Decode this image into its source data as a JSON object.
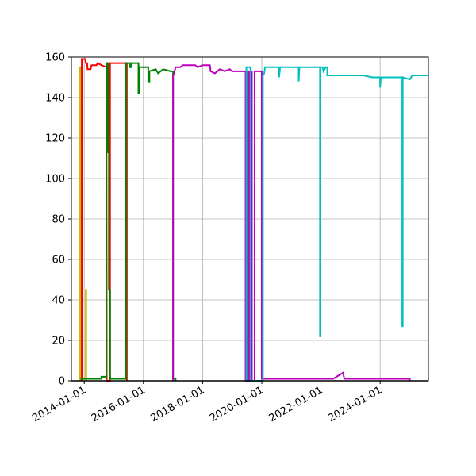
{
  "chart_data": {
    "type": "line",
    "title": "",
    "xlabel": "",
    "ylabel": "",
    "grid": true,
    "legend": "none",
    "xlim": [
      "2013-07-26",
      "2025-08-19"
    ],
    "ylim": [
      0,
      160
    ],
    "x_ticks": [
      "2014-01-01",
      "2016-01-01",
      "2018-01-01",
      "2020-01-01",
      "2022-01-01",
      "2024-01-01"
    ],
    "y_ticks": [
      0,
      20,
      40,
      60,
      80,
      100,
      120,
      140,
      160
    ],
    "series": [
      {
        "color": "#bfbf00",
        "points": [
          [
            "2013-11-10",
            0
          ],
          [
            "2013-11-10",
            155
          ],
          [
            "2013-11-20",
            155
          ],
          [
            "2013-11-20",
            1
          ],
          [
            "2014-01-20",
            1
          ],
          [
            "2014-01-20",
            45
          ],
          [
            "2014-01-25",
            45
          ],
          [
            "2014-01-25",
            0
          ]
        ]
      },
      {
        "color": "#ff0000",
        "points": [
          [
            "2013-12-01",
            0
          ],
          [
            "2013-12-01",
            159
          ],
          [
            "2014-01-15",
            159
          ],
          [
            "2014-01-20",
            157
          ],
          [
            "2014-02-05",
            157
          ],
          [
            "2014-02-10",
            154
          ],
          [
            "2014-03-20",
            154
          ],
          [
            "2014-04-01",
            156
          ],
          [
            "2014-06-01",
            156
          ],
          [
            "2014-06-15",
            157
          ],
          [
            "2014-08-01",
            156
          ],
          [
            "2014-10-01",
            155
          ],
          [
            "2014-10-05",
            0
          ],
          [
            "2014-11-15",
            0
          ],
          [
            "2014-11-15",
            157
          ],
          [
            "2015-06-10",
            157
          ],
          [
            "2015-06-10",
            0
          ]
        ]
      },
      {
        "color": "#008000",
        "points": [
          [
            "2013-11-15",
            1
          ],
          [
            "2014-08-01",
            1
          ],
          [
            "2014-08-01",
            2
          ],
          [
            "2014-10-01",
            2
          ],
          [
            "2014-10-01",
            157
          ],
          [
            "2014-10-20",
            157
          ],
          [
            "2014-10-20",
            113
          ],
          [
            "2014-11-01",
            113
          ],
          [
            "2014-11-01",
            45
          ],
          [
            "2014-11-15",
            45
          ],
          [
            "2014-11-15",
            1
          ],
          [
            "2015-06-01",
            1
          ],
          [
            "2015-06-01",
            157
          ],
          [
            "2015-07-20",
            157
          ],
          [
            "2015-07-20",
            155
          ],
          [
            "2015-08-10",
            155
          ],
          [
            "2015-08-10",
            157
          ],
          [
            "2015-11-01",
            157
          ],
          [
            "2015-11-01",
            142
          ],
          [
            "2015-11-15",
            142
          ],
          [
            "2015-11-15",
            155
          ],
          [
            "2016-03-01",
            155
          ],
          [
            "2016-03-01",
            148
          ],
          [
            "2016-03-15",
            148
          ],
          [
            "2016-03-15",
            153
          ],
          [
            "2016-06-01",
            154
          ],
          [
            "2016-07-01",
            152
          ],
          [
            "2016-09-01",
            154
          ],
          [
            "2016-12-01",
            153
          ],
          [
            "2017-01-01",
            153
          ],
          [
            "2017-01-01",
            1
          ],
          [
            "2017-02-01",
            1
          ],
          [
            "2017-02-01",
            0
          ]
        ]
      },
      {
        "color": "#bf00bf",
        "points": [
          [
            "2017-01-01",
            0
          ],
          [
            "2017-01-01",
            151
          ],
          [
            "2017-01-15",
            152
          ],
          [
            "2017-02-01",
            155
          ],
          [
            "2017-04-01",
            155
          ],
          [
            "2017-05-01",
            156
          ],
          [
            "2017-10-01",
            156
          ],
          [
            "2017-11-01",
            155
          ],
          [
            "2018-01-01",
            156
          ],
          [
            "2018-04-01",
            156
          ],
          [
            "2018-04-10",
            153
          ],
          [
            "2018-06-01",
            152
          ],
          [
            "2018-08-01",
            154
          ],
          [
            "2018-10-01",
            153
          ],
          [
            "2018-12-01",
            154
          ],
          [
            "2019-01-01",
            153
          ],
          [
            "2019-06-15",
            153
          ],
          [
            "2019-06-15",
            0
          ],
          [
            "2019-06-25",
            0
          ],
          [
            "2019-06-25",
            153
          ],
          [
            "2019-07-05",
            153
          ],
          [
            "2019-07-05",
            0
          ],
          [
            "2019-07-15",
            0
          ],
          [
            "2019-07-15",
            153
          ],
          [
            "2019-07-25",
            153
          ],
          [
            "2019-07-25",
            0
          ],
          [
            "2019-08-05",
            0
          ],
          [
            "2019-08-05",
            153
          ],
          [
            "2019-09-01",
            153
          ],
          [
            "2019-09-01",
            0
          ],
          [
            "2019-10-05",
            0
          ],
          [
            "2019-10-05",
            153
          ],
          [
            "2020-01-01",
            153
          ],
          [
            "2020-01-01",
            1
          ],
          [
            "2021-09-01",
            1
          ],
          [
            "2022-06-01",
            1
          ],
          [
            "2022-10-01",
            4
          ],
          [
            "2022-10-15",
            1
          ],
          [
            "2025-01-01",
            1
          ],
          [
            "2025-01-01",
            0
          ]
        ]
      },
      {
        "color": "#00bfbf",
        "points": [
          [
            "2019-06-25",
            0
          ],
          [
            "2019-06-25",
            155
          ],
          [
            "2019-08-15",
            155
          ],
          [
            "2019-08-15",
            0
          ],
          [
            "2020-01-15",
            0
          ],
          [
            "2020-01-15",
            151
          ],
          [
            "2020-02-01",
            152
          ],
          [
            "2020-02-10",
            155
          ],
          [
            "2020-08-01",
            155
          ],
          [
            "2020-08-01",
            150
          ],
          [
            "2020-08-15",
            155
          ],
          [
            "2021-04-01",
            155
          ],
          [
            "2021-04-01",
            148
          ],
          [
            "2021-04-10",
            155
          ],
          [
            "2021-12-20",
            155
          ],
          [
            "2021-12-20",
            22
          ],
          [
            "2021-12-25",
            22
          ],
          [
            "2021-12-25",
            155
          ],
          [
            "2022-01-20",
            155
          ],
          [
            "2022-02-01",
            153
          ],
          [
            "2022-03-01",
            155
          ],
          [
            "2022-03-20",
            155
          ],
          [
            "2022-03-20",
            151
          ],
          [
            "2022-06-01",
            151
          ],
          [
            "2023-06-01",
            151
          ],
          [
            "2023-10-01",
            150
          ],
          [
            "2024-01-01",
            150
          ],
          [
            "2024-01-01",
            145
          ],
          [
            "2024-01-10",
            150
          ],
          [
            "2024-10-01",
            150
          ],
          [
            "2024-10-01",
            27
          ],
          [
            "2024-10-06",
            27
          ],
          [
            "2024-10-06",
            150
          ],
          [
            "2025-01-01",
            149
          ],
          [
            "2025-02-01",
            151
          ],
          [
            "2025-08-19",
            151
          ]
        ]
      }
    ]
  }
}
